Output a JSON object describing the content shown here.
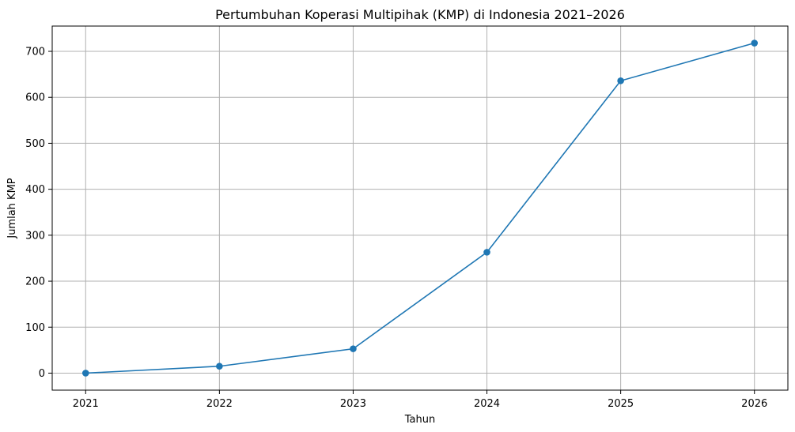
{
  "chart_data": {
    "type": "line",
    "title": "Pertumbuhan Koperasi Multipihak (KMP) di Indonesia 2021–2026",
    "xlabel": "Tahun",
    "ylabel": "Jumlah KMP",
    "x": [
      "2021",
      "2022",
      "2023",
      "2024",
      "2025",
      "2026"
    ],
    "series": [
      {
        "values": [
          0,
          15,
          53,
          263,
          636,
          718
        ]
      }
    ],
    "ylim": [
      -37,
      755
    ],
    "yticks": [
      0,
      100,
      200,
      300,
      400,
      500,
      600,
      700
    ],
    "grid": true,
    "marker": "circle",
    "color": "#1f77b4"
  }
}
